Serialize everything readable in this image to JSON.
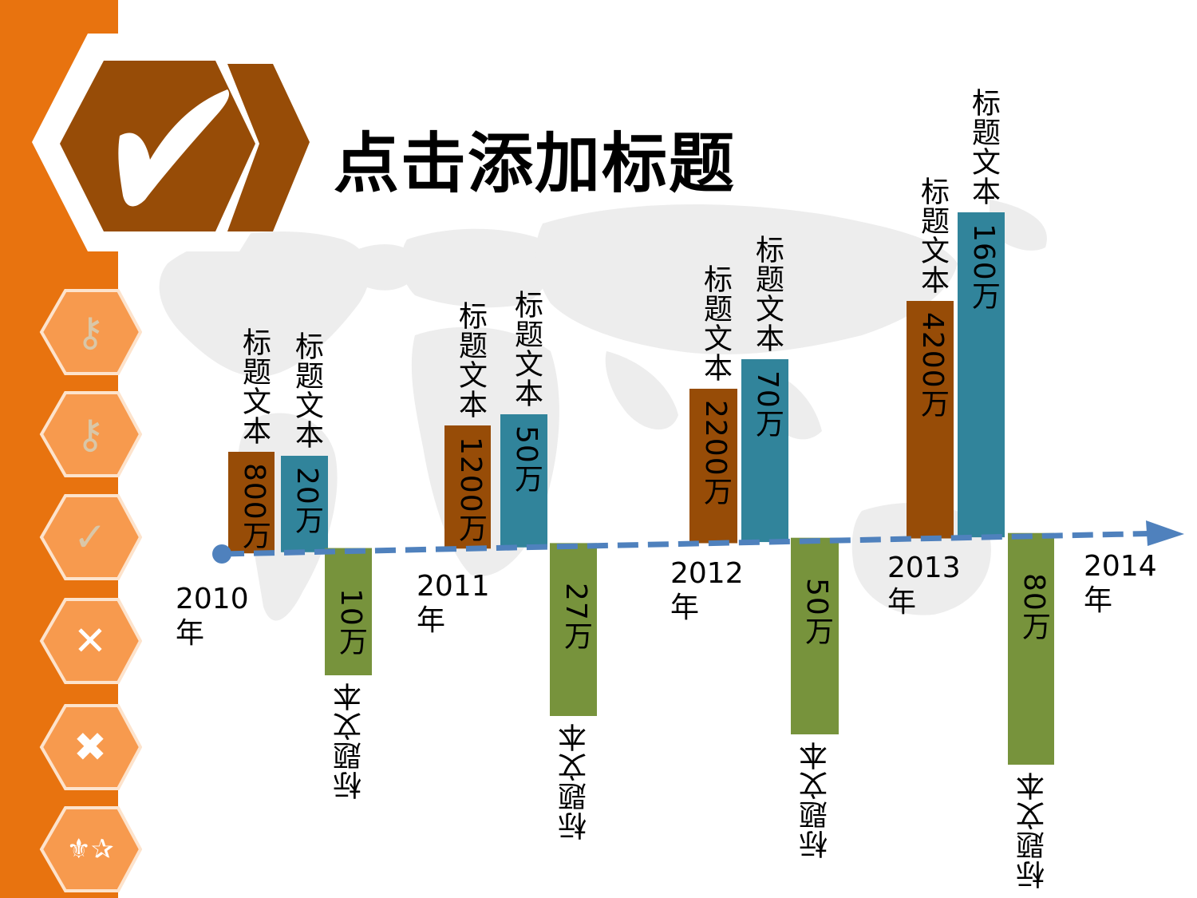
{
  "title": "点击添加标题",
  "colors": {
    "orange": "#e8730f",
    "brown": "#974c07",
    "teal": "#31849b",
    "green": "#77933c",
    "axis": "#4f81bd",
    "button_fill": "#f79a4e"
  },
  "sidebar": {
    "buttons": [
      {
        "icon": "key-icon",
        "glyph": "⚷",
        "dim": true
      },
      {
        "icon": "key-icon",
        "glyph": "⚷",
        "dim": true
      },
      {
        "icon": "check-icon",
        "glyph": "✓",
        "dim": true
      },
      {
        "icon": "close-icon",
        "glyph": "✕",
        "dim": false
      },
      {
        "icon": "heavy-x-icon",
        "glyph": "✖",
        "dim": false
      },
      {
        "icon": "decor-icon",
        "glyph": "⚜✰",
        "dim": false
      }
    ]
  },
  "chart_data": {
    "type": "bar",
    "axis_labels": [
      "2010年",
      "2011年",
      "2012年",
      "2013年",
      "2014年"
    ],
    "series": [
      {
        "label": "标题文本",
        "values": [
          "800万",
          "1200万",
          "2200万",
          "4200万"
        ]
      },
      {
        "label": "标题文本",
        "values": [
          "20万",
          "50万",
          "70万",
          "160万"
        ]
      },
      {
        "label": "标题文本",
        "values": [
          "10万",
          "27万",
          "50万",
          "80万"
        ]
      }
    ]
  }
}
